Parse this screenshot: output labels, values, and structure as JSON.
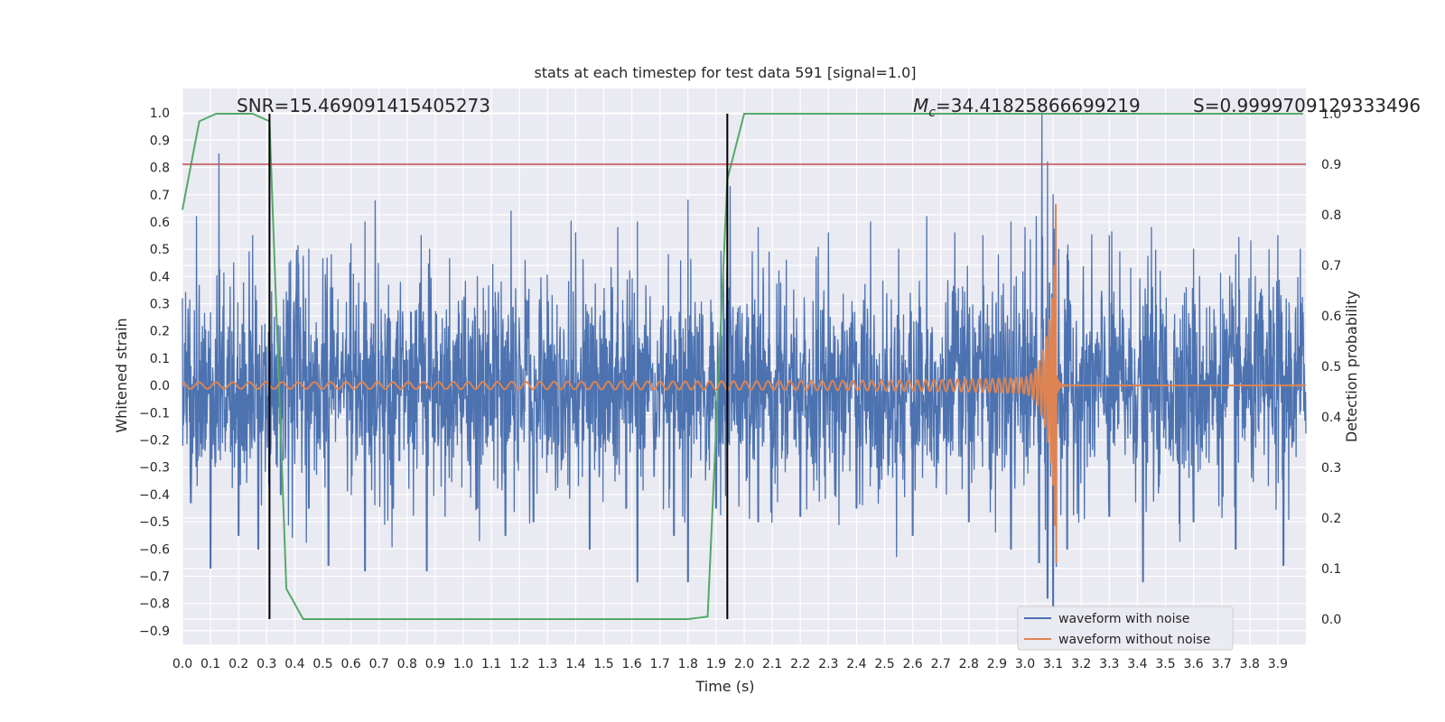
{
  "chart_data": {
    "type": "line",
    "title": "stats at each timestep for test data 591 [signal=1.0]",
    "xlabel": "Time (s)",
    "ylabel_left": "Whitened strain",
    "ylabel_right": "Detection probability",
    "xlim": [
      0.0,
      4.0
    ],
    "ylim_left": [
      -0.95,
      1.09
    ],
    "ylim_right": [
      -0.05,
      1.05
    ],
    "x_ticks": [
      "0.0",
      "0.1",
      "0.2",
      "0.3",
      "0.4",
      "0.5",
      "0.6",
      "0.7",
      "0.8",
      "0.9",
      "1.0",
      "1.1",
      "1.2",
      "1.3",
      "1.4",
      "1.5",
      "1.6",
      "1.7",
      "1.8",
      "1.9",
      "2.0",
      "2.1",
      "2.2",
      "2.3",
      "2.4",
      "2.5",
      "2.6",
      "2.7",
      "2.8",
      "2.9",
      "3.0",
      "3.1",
      "3.2",
      "3.3",
      "3.4",
      "3.5",
      "3.6",
      "3.7",
      "3.8",
      "3.9"
    ],
    "y_ticks_left": [
      "−0.9",
      "−0.8",
      "−0.7",
      "−0.6",
      "−0.5",
      "−0.4",
      "−0.3",
      "−0.2",
      "−0.1",
      "0.0",
      "0.1",
      "0.2",
      "0.3",
      "0.4",
      "0.5",
      "0.6",
      "0.7",
      "0.8",
      "0.9",
      "1.0"
    ],
    "y_ticks_right": [
      "0.0",
      "0.1",
      "0.2",
      "0.3",
      "0.4",
      "0.5",
      "0.6",
      "0.7",
      "0.8",
      "0.9",
      "1.0"
    ],
    "grid": true,
    "legend_placement": "lower-right",
    "colors": {
      "noisy": "#4c72b0",
      "clean": "#dd8452",
      "prob": "#55a868",
      "threshold": "#c44e52",
      "vline": "#000000",
      "axes_bg": "#eaeaf2",
      "grid": "#ffffff"
    },
    "annotations": {
      "snr": "SNR=15.469091415405273",
      "mc_symbol": "M",
      "mc_sub": "c",
      "mc_value": "=34.41825866699219",
      "s": "S=0.9999709129333496"
    },
    "threshold_right": 0.9,
    "vertical_lines_x": [
      0.31,
      1.94
    ],
    "series": [
      {
        "name": "waveform with noise",
        "axis": "left",
        "peaks_x": [
          0.0,
          0.05,
          0.13,
          0.25,
          0.31,
          0.38,
          0.45,
          0.53,
          0.6,
          0.65,
          0.85,
          0.88,
          1.05,
          1.17,
          1.22,
          1.4,
          1.55,
          1.62,
          1.73,
          1.8,
          1.95,
          2.05,
          2.15,
          2.3,
          2.45,
          2.55,
          2.65,
          2.75,
          2.85,
          2.95,
          3.0,
          3.04,
          3.06,
          3.08,
          3.1,
          3.12,
          3.15,
          3.3,
          3.45,
          3.6,
          3.75,
          3.9,
          3.98
        ],
        "peaks_y": [
          0.32,
          0.62,
          0.85,
          0.55,
          0.97,
          0.45,
          0.5,
          0.48,
          0.52,
          0.6,
          0.55,
          0.5,
          0.4,
          0.64,
          0.46,
          0.56,
          0.58,
          0.6,
          0.48,
          0.68,
          0.73,
          0.58,
          0.46,
          0.56,
          0.6,
          0.5,
          0.62,
          0.56,
          0.55,
          0.6,
          0.58,
          0.62,
          1.0,
          0.82,
          0.7,
          0.5,
          0.48,
          0.55,
          0.58,
          0.5,
          0.48,
          0.55,
          0.5
        ],
        "troughs_x": [
          0.03,
          0.1,
          0.2,
          0.27,
          0.35,
          0.45,
          0.52,
          0.65,
          0.75,
          0.87,
          1.05,
          1.15,
          1.25,
          1.45,
          1.58,
          1.62,
          1.75,
          1.8,
          1.9,
          2.05,
          2.2,
          2.4,
          2.6,
          2.8,
          2.95,
          3.05,
          3.08,
          3.1,
          3.15,
          3.3,
          3.42,
          3.6,
          3.75,
          3.92
        ],
        "troughs_y": [
          -0.43,
          -0.67,
          -0.55,
          -0.6,
          -0.4,
          -0.45,
          -0.66,
          -0.68,
          -0.45,
          -0.68,
          -0.45,
          -0.55,
          -0.5,
          -0.6,
          -0.45,
          -0.72,
          -0.55,
          -0.72,
          -0.45,
          -0.5,
          -0.48,
          -0.45,
          -0.55,
          -0.5,
          -0.6,
          -0.65,
          -0.78,
          -0.82,
          -0.6,
          -0.48,
          -0.72,
          -0.5,
          -0.6,
          -0.66
        ]
      },
      {
        "name": "waveform without noise",
        "axis": "left",
        "x_start": 0.0,
        "x_merge": 3.1,
        "amplitude_peak": 0.71,
        "amplitude_min": -0.65
      },
      {
        "name": "detection probability",
        "axis": "right",
        "x": [
          0.0,
          0.06,
          0.12,
          0.25,
          0.31,
          0.37,
          0.43,
          1.8,
          1.87,
          1.94,
          2.0,
          3.99
        ],
        "y": [
          0.81,
          0.985,
          1.0,
          1.0,
          0.985,
          0.06,
          0.0,
          0.0,
          0.005,
          0.87,
          1.0,
          1.0
        ]
      }
    ]
  }
}
